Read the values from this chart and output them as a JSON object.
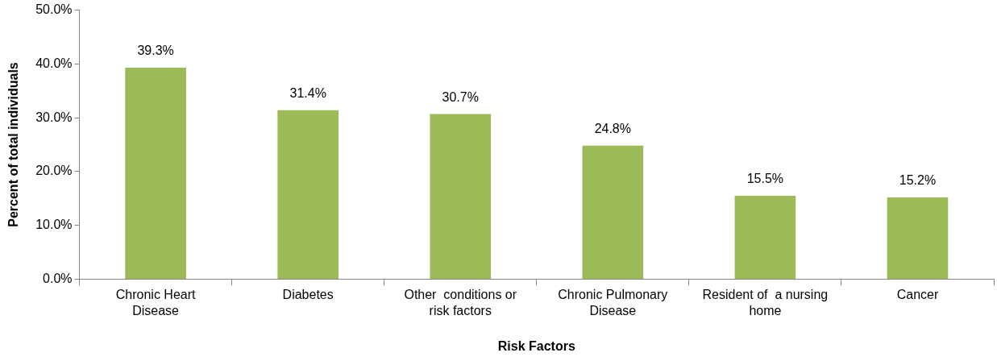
{
  "chart_data": {
    "type": "bar",
    "xlabel": "Risk Factors",
    "ylabel": "Percent of total individuals",
    "categories": [
      "Chronic Heart Disease",
      "Diabetes",
      "Other  conditions or risk factors",
      "Chronic Pulmonary Disease",
      "Resident of  a nursing home",
      "Cancer"
    ],
    "values": [
      39.3,
      31.4,
      30.7,
      24.8,
      15.5,
      15.2
    ],
    "value_labels": [
      "39.3%",
      "31.4%",
      "30.7%",
      "24.8%",
      "15.5%",
      "15.2%"
    ],
    "color": "#9bbb59",
    "ylim": [
      0,
      50
    ],
    "yticks": [
      {
        "value": 0,
        "label": "0.0%"
      },
      {
        "value": 10,
        "label": "10.0%"
      },
      {
        "value": 20,
        "label": "20.0%"
      },
      {
        "value": 30,
        "label": "30.0%"
      },
      {
        "value": 40,
        "label": "40.0%"
      },
      {
        "value": 50,
        "label": "50.0%"
      }
    ],
    "grid": false,
    "legend": false
  }
}
